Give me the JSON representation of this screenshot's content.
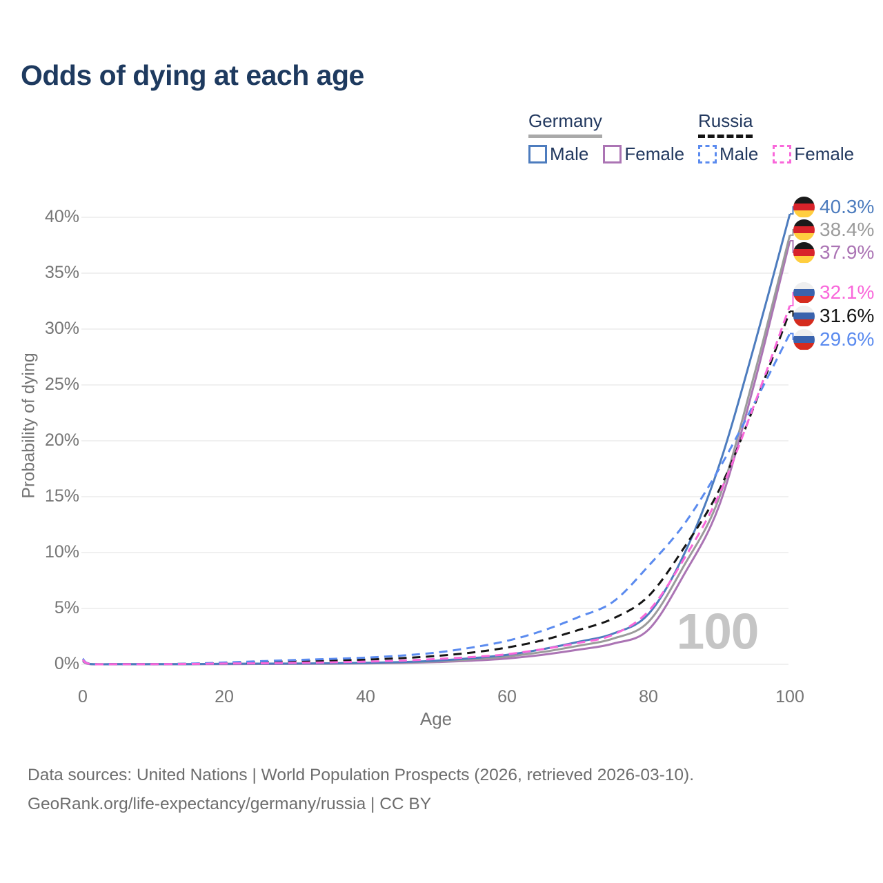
{
  "title": "Odds of dying at each age",
  "legend": {
    "position": "top-right",
    "groups": [
      {
        "name": "Germany",
        "line_style": "solid",
        "header_line_color": "#a9a9a9",
        "items": [
          {
            "label": "Male",
            "color": "#4d7cbe"
          },
          {
            "label": "Female",
            "color": "#ab74b4"
          }
        ]
      },
      {
        "name": "Russia",
        "line_style": "dashed",
        "header_line_color": "#141414",
        "items": [
          {
            "label": "Male",
            "color": "#5b8bef"
          },
          {
            "label": "Female",
            "color": "#f967da"
          }
        ]
      }
    ]
  },
  "flags": {
    "Germany": [
      "#1a1a1a",
      "#d8232a",
      "#ffce3f"
    ],
    "Russia": [
      "#efefef",
      "#3a63ad",
      "#d52b1e"
    ]
  },
  "chart_data": {
    "type": "line",
    "title": "Odds of dying at each age",
    "xlabel": "Age",
    "ylabel": "Probability of dying",
    "watermark": "100",
    "xlim": [
      0,
      100
    ],
    "ylim": [
      0,
      40
    ],
    "x_ticks": [
      0,
      20,
      40,
      60,
      80,
      100
    ],
    "y_tick_values": [
      0,
      5,
      10,
      15,
      20,
      25,
      30,
      35,
      40
    ],
    "y_ticks": [
      "0%",
      "5%",
      "10%",
      "15%",
      "20%",
      "25%",
      "30%",
      "35%",
      "40%"
    ],
    "grid": "horizontal",
    "x": [
      0,
      1,
      5,
      10,
      15,
      20,
      25,
      30,
      35,
      40,
      45,
      50,
      55,
      60,
      65,
      70,
      75,
      80,
      85,
      90,
      95,
      100
    ],
    "series": [
      {
        "name": "Germany Male",
        "country": "Germany",
        "sex": "Male",
        "style": "solid",
        "color": "#4d7cbe",
        "end_value": 40.3,
        "end_label": "40.3%",
        "values": [
          0.35,
          0.03,
          0.01,
          0.01,
          0.02,
          0.05,
          0.06,
          0.07,
          0.09,
          0.13,
          0.2,
          0.33,
          0.55,
          0.85,
          1.35,
          2.0,
          2.75,
          4.5,
          9.8,
          17.8,
          28.6,
          40.3
        ]
      },
      {
        "name": "Germany (both sexes)",
        "country": "Germany",
        "sex": "Both",
        "style": "solid",
        "color": "#9b9b9b",
        "end_value": 38.4,
        "end_label": "38.4%",
        "values": [
          0.3,
          0.03,
          0.01,
          0.01,
          0.02,
          0.04,
          0.05,
          0.06,
          0.07,
          0.1,
          0.16,
          0.26,
          0.44,
          0.7,
          1.1,
          1.65,
          2.3,
          3.8,
          8.8,
          14.9,
          26.0,
          38.4
        ]
      },
      {
        "name": "Germany Female",
        "country": "Germany",
        "sex": "Female",
        "style": "solid",
        "color": "#ab74b4",
        "end_value": 37.9,
        "end_label": "37.9%",
        "values": [
          0.28,
          0.02,
          0.01,
          0.01,
          0.01,
          0.02,
          0.03,
          0.04,
          0.05,
          0.08,
          0.12,
          0.2,
          0.33,
          0.52,
          0.85,
          1.3,
          1.85,
          3.1,
          8.0,
          14.2,
          25.2,
          37.9
        ]
      },
      {
        "name": "Russia Male",
        "country": "Russia",
        "sex": "Male",
        "style": "dashed",
        "color": "#5b8bef",
        "end_value": 29.6,
        "end_label": "29.6%",
        "values": [
          0.5,
          0.05,
          0.02,
          0.02,
          0.06,
          0.16,
          0.28,
          0.38,
          0.48,
          0.6,
          0.78,
          1.05,
          1.5,
          2.1,
          3.0,
          4.2,
          5.6,
          8.8,
          12.5,
          17.5,
          23.4,
          29.6
        ]
      },
      {
        "name": "Russia (both sexes)",
        "country": "Russia",
        "sex": "Both",
        "style": "dashed",
        "color": "#151515",
        "end_value": 31.6,
        "end_label": "31.6%",
        "values": [
          0.45,
          0.05,
          0.02,
          0.02,
          0.05,
          0.12,
          0.2,
          0.27,
          0.34,
          0.42,
          0.55,
          0.75,
          1.05,
          1.5,
          2.15,
          3.05,
          4.1,
          6.1,
          10.4,
          15.6,
          23.2,
          31.6
        ]
      },
      {
        "name": "Russia Female",
        "country": "Russia",
        "sex": "Female",
        "style": "dashed",
        "color": "#f967da",
        "end_value": 32.1,
        "end_label": "32.1%",
        "values": [
          0.4,
          0.04,
          0.01,
          0.01,
          0.03,
          0.07,
          0.09,
          0.13,
          0.18,
          0.24,
          0.33,
          0.48,
          0.65,
          0.9,
          1.35,
          1.9,
          2.65,
          4.75,
          9.4,
          15.2,
          23.3,
          32.1
        ]
      }
    ]
  },
  "footer": {
    "line1": "Data sources: United Nations | World Population Prospects (2026, retrieved 2026-03-10).",
    "line2": "GeoRank.org/life-expectancy/germany/russia | CC BY"
  }
}
